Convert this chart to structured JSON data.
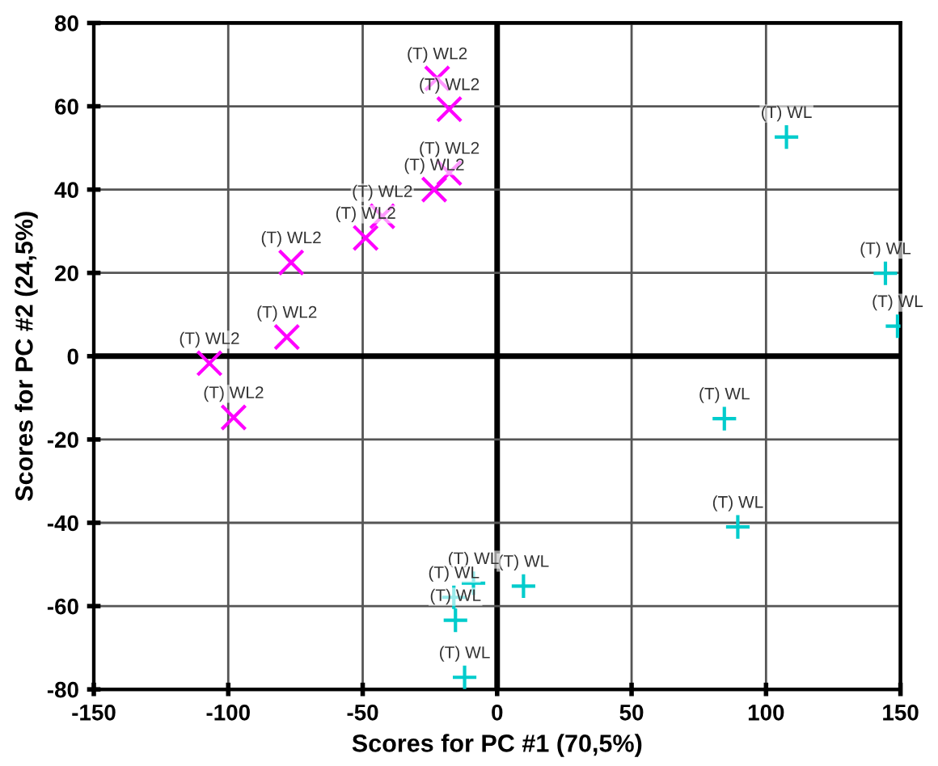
{
  "chart_data": {
    "type": "scatter",
    "xlabel": "Scores for PC #1 (70,5%)",
    "ylabel": "Scores for PC #2 (24,5%)",
    "xlim": [
      -150,
      150
    ],
    "ylim": [
      -80,
      80
    ],
    "xticks": [
      -150,
      -100,
      -50,
      0,
      50,
      100,
      150
    ],
    "yticks": [
      -80,
      -60,
      -40,
      -20,
      0,
      20,
      40,
      60,
      80
    ],
    "grid": true,
    "series": [
      {
        "color": "#ff00ff",
        "marker": "cross",
        "x": [
          -22.3,
          -17.8,
          -17.8,
          -23.4,
          -42.7,
          -48.9,
          -76.6,
          -78.2,
          -107,
          -98
        ],
        "values": [
          66.7,
          59.3,
          44,
          40,
          33.6,
          28.4,
          22.5,
          4.6,
          -1.7,
          -14.7
        ],
        "value_labels": [
          "(T) WL2",
          "(T) WL2",
          "(T) WL2",
          "(T) WL2",
          "(T) WL2",
          "(T) WL2",
          "(T) WL2",
          "(T) WL2",
          "(T) WL2",
          "(T) WL2"
        ]
      },
      {
        "color": "#00cccc",
        "marker": "plus",
        "x": [
          107.6,
          144.4,
          148.9,
          84.5,
          89.5,
          9.8,
          -8.8,
          -16.1,
          -15.5,
          -12.1
        ],
        "values": [
          52.6,
          19.9,
          7.2,
          -15,
          -41,
          -55.2,
          -54.5,
          -57.9,
          -63.4,
          -77.1
        ],
        "value_labels": [
          "(T) WL",
          "(T) WL",
          "(T) WL",
          "(T) WL",
          "(T) WL",
          "(T) WL",
          "(T) WL",
          "(T) WL",
          "(T) WL",
          "(T) WL"
        ]
      }
    ]
  }
}
